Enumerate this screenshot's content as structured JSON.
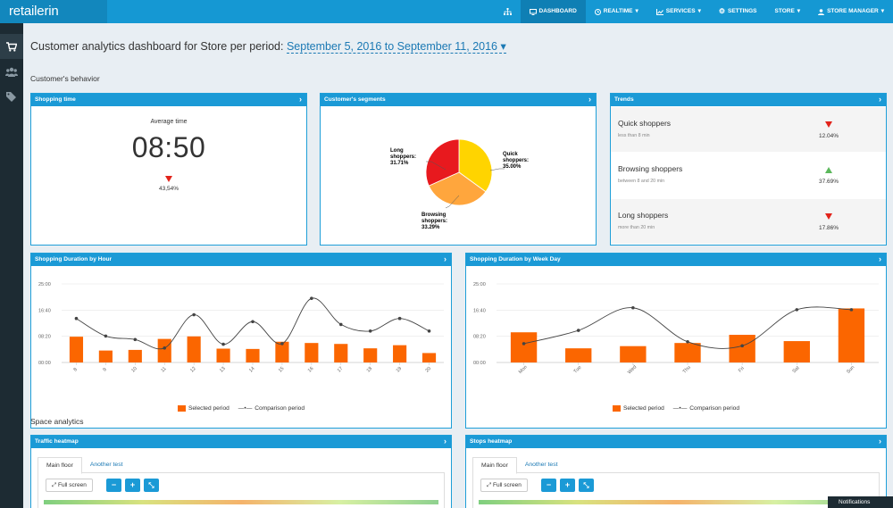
{
  "app": {
    "logo": "retailerin"
  },
  "nav": {
    "items": [
      {
        "label": "",
        "icon": "sitemap-icon"
      },
      {
        "label": "DASHBOARD",
        "icon": "monitor-icon",
        "active": true
      },
      {
        "label": "REALTIME",
        "icon": "clock-icon",
        "dropdown": true
      },
      {
        "label": "SERVICES",
        "icon": "chart-icon",
        "dropdown": true
      },
      {
        "label": "SETTINGS",
        "icon": "gear-icon"
      },
      {
        "label": "STORE",
        "dropdown": true
      },
      {
        "label": "STORE MANAGER",
        "icon": "user-icon",
        "dropdown": true
      }
    ]
  },
  "sidebar": {
    "items": [
      "cart-icon",
      "users-icon",
      "tags-icon"
    ]
  },
  "header": {
    "title": "Customer analytics dashboard for Store per period:",
    "period": "September 5, 2016 to September 11, 2016"
  },
  "sections": {
    "behavior": "Customer's behavior",
    "space": "Space analytics"
  },
  "shopping_time": {
    "title": "Shopping time",
    "avg_label": "Average time",
    "avg_value": "08:50",
    "change": "43,54%",
    "change_direction": "down"
  },
  "segments": {
    "title": "Customer's segments",
    "labels": [
      {
        "line1": "Long",
        "line2": "shoppers:",
        "value": "31.71%"
      },
      {
        "line1": "Quick",
        "line2": "shoppers:",
        "value": "35.00%"
      },
      {
        "line1": "Browsing",
        "line2": "shoppers:",
        "value": "33.29%"
      }
    ]
  },
  "trends": {
    "title": "Trends",
    "items": [
      {
        "name": "Quick shoppers",
        "sub": "less than 8 min",
        "value": "12.04%",
        "direction": "down"
      },
      {
        "name": "Browsing shoppers",
        "sub": "between 8 and 20 min",
        "value": "37.69%",
        "direction": "up"
      },
      {
        "name": "Long shoppers",
        "sub": "more than 20 min",
        "value": "17.86%",
        "direction": "down"
      }
    ]
  },
  "hour_chart": {
    "title": "Shopping Duration by Hour"
  },
  "weekday_chart": {
    "title": "Shopping Duration by Week Day"
  },
  "legend": {
    "selected": "Selected period",
    "comparison": "Comparison period"
  },
  "traffic_heatmap": {
    "title": "Traffic heatmap",
    "tabs": [
      "Main floor",
      "Another test"
    ],
    "fullscreen": "Full screen"
  },
  "stops_heatmap": {
    "title": "Stops heatmap",
    "tabs": [
      "Main floor",
      "Another test"
    ],
    "fullscreen": "Full screen"
  },
  "notifications": {
    "label": "Notifications"
  },
  "colors": {
    "brand": "#1598d3",
    "bar": "#fb6600",
    "pie_long": "#e8191e",
    "pie_quick": "#ffd400",
    "pie_browsing": "#ffa63d"
  },
  "chart_data": [
    {
      "type": "pie",
      "labels": [
        "Quick shoppers",
        "Browsing shoppers",
        "Long shoppers"
      ],
      "values": [
        35.0,
        33.29,
        31.71
      ]
    },
    {
      "type": "bar",
      "title": "Shopping Duration by Hour",
      "ytick_labels": [
        "25:00",
        "16:40",
        "08:20",
        "00:00"
      ],
      "ylim": [
        0,
        25
      ],
      "categories": [
        "8",
        "9",
        "10",
        "11",
        "12",
        "13",
        "14",
        "15",
        "16",
        "17",
        "18",
        "19",
        "20"
      ],
      "series": [
        {
          "name": "Selected period",
          "type": "bar",
          "values": [
            8.2,
            3.8,
            4.0,
            7.5,
            8.3,
            4.4,
            4.3,
            6.6,
            6.2,
            5.9,
            4.5,
            5.5,
            3.0
          ]
        },
        {
          "name": "Comparison period",
          "type": "line",
          "values": [
            14.0,
            8.4,
            7.3,
            4.6,
            15.2,
            5.8,
            13.0,
            6.0,
            20.4,
            12.1,
            10.0,
            14.0,
            10.0
          ]
        }
      ]
    },
    {
      "type": "bar",
      "title": "Shopping Duration by Week Day",
      "ytick_labels": [
        "25:00",
        "16:40",
        "08:20",
        "00:00"
      ],
      "ylim": [
        0,
        25
      ],
      "categories": [
        "Mon",
        "Tue",
        "Wed",
        "Thu",
        "Fri",
        "Sat",
        "Sun"
      ],
      "series": [
        {
          "name": "Selected period",
          "type": "bar",
          "values": [
            9.6,
            4.5,
            5.2,
            6.2,
            8.8,
            6.8,
            17.2
          ]
        },
        {
          "name": "Comparison period",
          "type": "line",
          "values": [
            6.0,
            10.2,
            17.4,
            6.6,
            5.3,
            16.8,
            16.8
          ]
        }
      ]
    }
  ]
}
